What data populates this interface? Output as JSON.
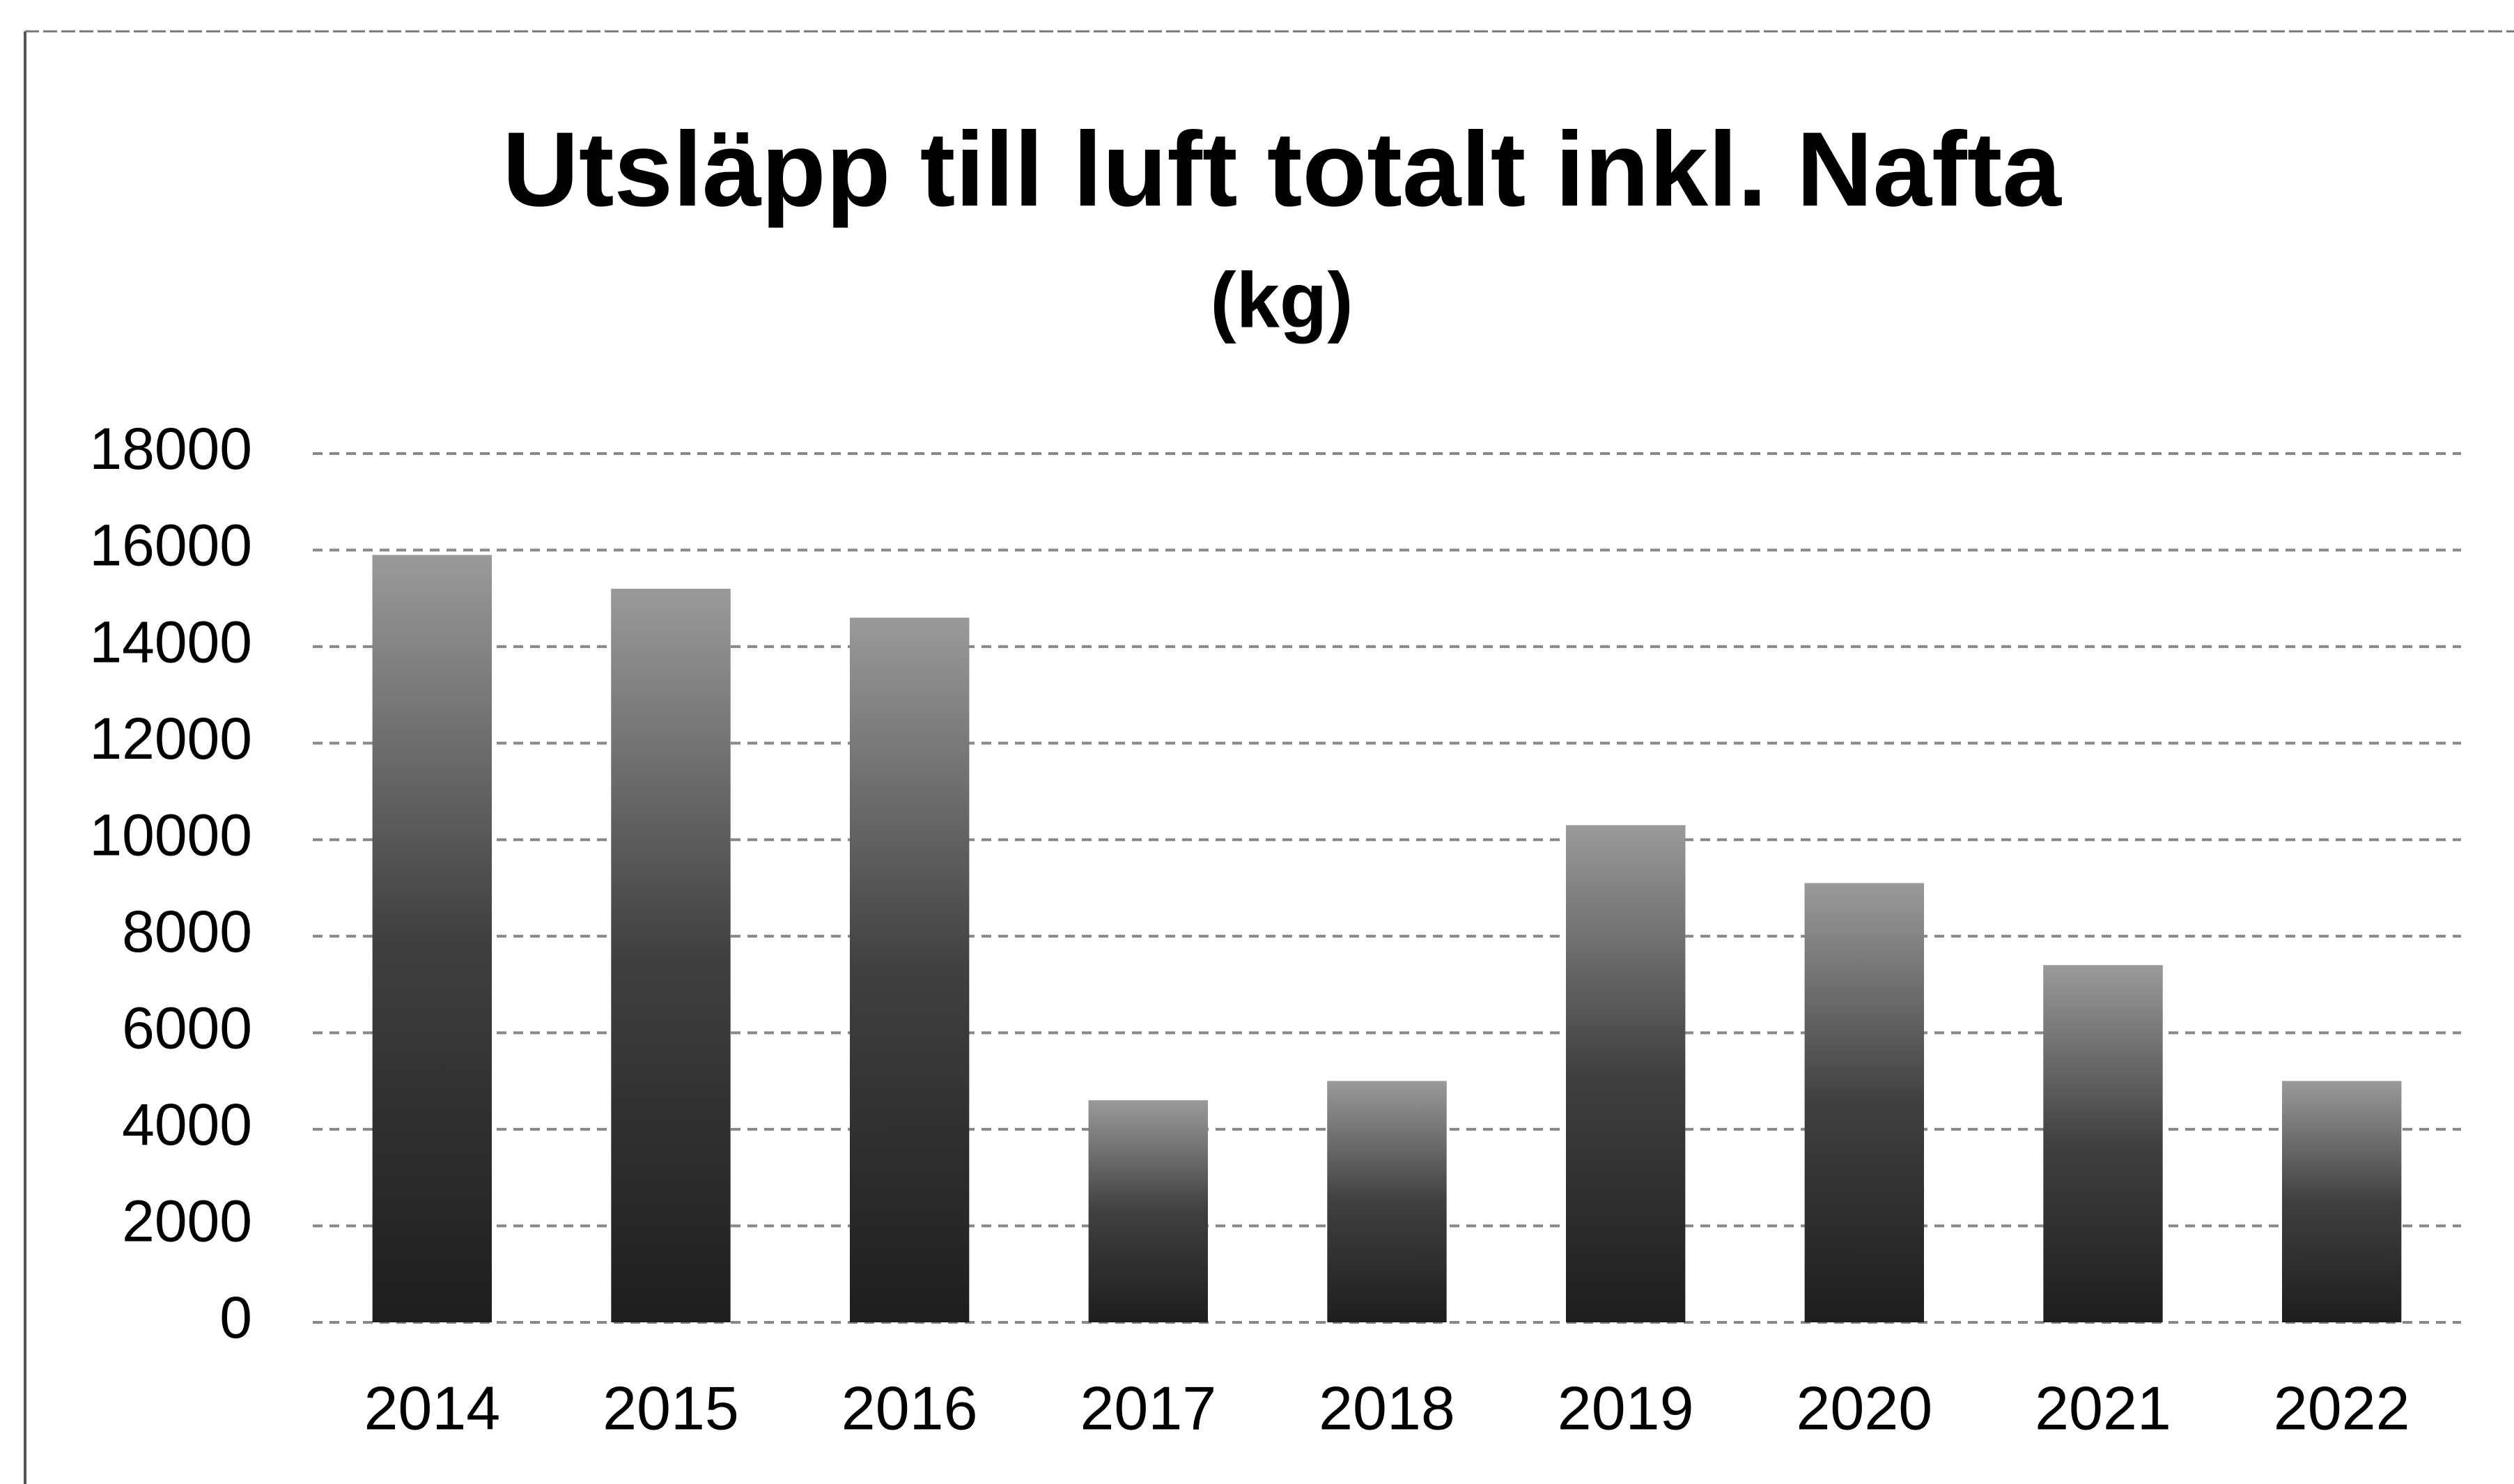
{
  "chart_data": {
    "type": "bar",
    "title": "Utsläpp till luft totalt inkl. Nafta",
    "subtitle": "(kg)",
    "categories": [
      "2014",
      "2015",
      "2016",
      "2017",
      "2018",
      "2019",
      "2020",
      "2021",
      "2022"
    ],
    "values": [
      15900,
      15200,
      14600,
      4600,
      5000,
      10300,
      9100,
      7400,
      5000
    ],
    "color": "#1e1e1e",
    "ylim": [
      0,
      18000
    ],
    "yticks": [
      0,
      2000,
      4000,
      6000,
      8000,
      10000,
      12000,
      14000,
      16000,
      18000
    ],
    "grid": true
  }
}
